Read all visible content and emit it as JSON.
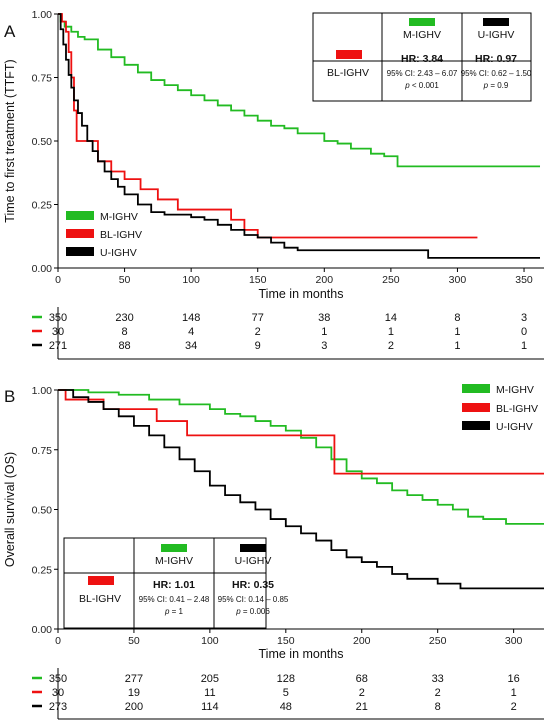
{
  "chart_data": [
    {
      "type": "line",
      "panel_label": "A",
      "ylabel": "Time to first treatment (TTFT)",
      "xlabel": "Time in months",
      "xlim": [
        0,
        365
      ],
      "ylim": [
        0,
        1
      ],
      "xticks": [
        "0",
        "50",
        "100",
        "150",
        "200",
        "250",
        "300",
        "350"
      ],
      "yticks": [
        "0.00",
        "0.25",
        "0.50",
        "0.75",
        "1.00"
      ],
      "legend": [
        "M-IGHV",
        "BL-IGHV",
        "U-IGHV"
      ],
      "series": [
        {
          "name": "M-IGHV",
          "color": "#22bb22",
          "points": [
            [
              0,
              1
            ],
            [
              2,
              0.97
            ],
            [
              5,
              0.95
            ],
            [
              10,
              0.93
            ],
            [
              15,
              0.91
            ],
            [
              20,
              0.9
            ],
            [
              30,
              0.86
            ],
            [
              40,
              0.83
            ],
            [
              50,
              0.8
            ],
            [
              60,
              0.77
            ],
            [
              70,
              0.74
            ],
            [
              80,
              0.72
            ],
            [
              90,
              0.7
            ],
            [
              100,
              0.68
            ],
            [
              110,
              0.66
            ],
            [
              120,
              0.64
            ],
            [
              130,
              0.62
            ],
            [
              140,
              0.6
            ],
            [
              150,
              0.58
            ],
            [
              160,
              0.56
            ],
            [
              170,
              0.55
            ],
            [
              180,
              0.53
            ],
            [
              200,
              0.5
            ],
            [
              210,
              0.49
            ],
            [
              220,
              0.47
            ],
            [
              235,
              0.45
            ],
            [
              245,
              0.44
            ],
            [
              255,
              0.4
            ],
            [
              300,
              0.4
            ],
            [
              362,
              0.4
            ]
          ]
        },
        {
          "name": "BL-IGHV",
          "color": "#ee1111",
          "points": [
            [
              0,
              1
            ],
            [
              3,
              0.97
            ],
            [
              6,
              0.93
            ],
            [
              8,
              0.85
            ],
            [
              10,
              0.75
            ],
            [
              12,
              0.62
            ],
            [
              14,
              0.5
            ],
            [
              30,
              0.5
            ],
            [
              30,
              0.42
            ],
            [
              40,
              0.42
            ],
            [
              40,
              0.38
            ],
            [
              50,
              0.38
            ],
            [
              50,
              0.35
            ],
            [
              62,
              0.35
            ],
            [
              62,
              0.31
            ],
            [
              75,
              0.31
            ],
            [
              75,
              0.27
            ],
            [
              90,
              0.27
            ],
            [
              90,
              0.23
            ],
            [
              130,
              0.23
            ],
            [
              130,
              0.19
            ],
            [
              140,
              0.19
            ],
            [
              140,
              0.15
            ],
            [
              150,
              0.15
            ],
            [
              150,
              0.12
            ],
            [
              315,
              0.12
            ]
          ]
        },
        {
          "name": "U-IGHV",
          "color": "#000000",
          "points": [
            [
              0,
              1
            ],
            [
              2,
              0.94
            ],
            [
              4,
              0.88
            ],
            [
              6,
              0.82
            ],
            [
              8,
              0.76
            ],
            [
              10,
              0.71
            ],
            [
              12,
              0.66
            ],
            [
              15,
              0.61
            ],
            [
              18,
              0.56
            ],
            [
              22,
              0.5
            ],
            [
              26,
              0.46
            ],
            [
              30,
              0.42
            ],
            [
              35,
              0.38
            ],
            [
              40,
              0.35
            ],
            [
              45,
              0.32
            ],
            [
              50,
              0.29
            ],
            [
              60,
              0.25
            ],
            [
              70,
              0.22
            ],
            [
              80,
              0.21
            ],
            [
              100,
              0.2
            ],
            [
              110,
              0.19
            ],
            [
              120,
              0.17
            ],
            [
              130,
              0.15
            ],
            [
              140,
              0.13
            ],
            [
              150,
              0.12
            ],
            [
              160,
              0.1
            ],
            [
              170,
              0.08
            ],
            [
              180,
              0.07
            ],
            [
              278,
              0.07
            ],
            [
              278,
              0.04
            ],
            [
              362,
              0.04
            ]
          ]
        }
      ],
      "risk_table": {
        "times": [
          0,
          50,
          100,
          150,
          200,
          250,
          300,
          350
        ],
        "rows": [
          {
            "name": "M-IGHV",
            "values": [
              "350",
              "230",
              "148",
              "77",
              "38",
              "14",
              "8",
              "3"
            ]
          },
          {
            "name": "BL-IGHV",
            "values": [
              "30",
              "8",
              "4",
              "2",
              "1",
              "1",
              "1",
              "0"
            ]
          },
          {
            "name": "U-IGHV",
            "values": [
              "271",
              "88",
              "34",
              "9",
              "3",
              "2",
              "1",
              "1"
            ]
          }
        ]
      },
      "hr_table": {
        "row": "BL-IGHV",
        "cols": [
          {
            "name": "M-IGHV",
            "hr": "HR: 3.84",
            "ci": "95% CI: 2.43 – 6.07",
            "p": "< 0.001"
          },
          {
            "name": "U-IGHV",
            "hr": "HR: 0.97",
            "ci": "95% CI: 0.62 – 1.50",
            "p": "= 0.9"
          }
        ]
      }
    },
    {
      "type": "line",
      "panel_label": "B",
      "ylabel": "Overall survival (OS)",
      "xlabel": "Time in months",
      "xlim": [
        0,
        320
      ],
      "ylim": [
        0,
        1
      ],
      "xticks": [
        "0",
        "50",
        "100",
        "150",
        "200",
        "250",
        "300"
      ],
      "yticks": [
        "0.00",
        "0.25",
        "0.50",
        "0.75",
        "1.00"
      ],
      "legend": [
        "M-IGHV",
        "BL-IGHV",
        "U-IGHV"
      ],
      "series": [
        {
          "name": "M-IGHV",
          "color": "#22bb22",
          "points": [
            [
              0,
              1
            ],
            [
              20,
              0.99
            ],
            [
              40,
              0.98
            ],
            [
              60,
              0.96
            ],
            [
              80,
              0.94
            ],
            [
              100,
              0.92
            ],
            [
              110,
              0.9
            ],
            [
              120,
              0.89
            ],
            [
              130,
              0.87
            ],
            [
              140,
              0.85
            ],
            [
              150,
              0.83
            ],
            [
              160,
              0.8
            ],
            [
              170,
              0.76
            ],
            [
              180,
              0.71
            ],
            [
              190,
              0.66
            ],
            [
              200,
              0.63
            ],
            [
              210,
              0.61
            ],
            [
              220,
              0.58
            ],
            [
              230,
              0.56
            ],
            [
              240,
              0.54
            ],
            [
              250,
              0.52
            ],
            [
              260,
              0.5
            ],
            [
              270,
              0.47
            ],
            [
              280,
              0.46
            ],
            [
              295,
              0.44
            ],
            [
              320,
              0.44
            ]
          ]
        },
        {
          "name": "BL-IGHV",
          "color": "#ee1111",
          "points": [
            [
              0,
              1
            ],
            [
              5,
              0.96
            ],
            [
              30,
              0.96
            ],
            [
              30,
              0.92
            ],
            [
              65,
              0.92
            ],
            [
              65,
              0.87
            ],
            [
              85,
              0.87
            ],
            [
              85,
              0.81
            ],
            [
              180,
              0.81
            ],
            [
              182,
              0.65
            ],
            [
              320,
              0.65
            ]
          ]
        },
        {
          "name": "U-IGHV",
          "color": "#000000",
          "points": [
            [
              0,
              1
            ],
            [
              10,
              0.97
            ],
            [
              20,
              0.95
            ],
            [
              30,
              0.92
            ],
            [
              40,
              0.89
            ],
            [
              50,
              0.85
            ],
            [
              60,
              0.81
            ],
            [
              70,
              0.76
            ],
            [
              80,
              0.71
            ],
            [
              90,
              0.66
            ],
            [
              100,
              0.6
            ],
            [
              110,
              0.56
            ],
            [
              120,
              0.53
            ],
            [
              130,
              0.5
            ],
            [
              140,
              0.46
            ],
            [
              150,
              0.43
            ],
            [
              160,
              0.4
            ],
            [
              170,
              0.37
            ],
            [
              180,
              0.33
            ],
            [
              190,
              0.3
            ],
            [
              200,
              0.28
            ],
            [
              210,
              0.26
            ],
            [
              220,
              0.23
            ],
            [
              230,
              0.21
            ],
            [
              250,
              0.19
            ],
            [
              265,
              0.17
            ],
            [
              320,
              0.17
            ]
          ]
        }
      ],
      "risk_table": {
        "times": [
          0,
          50,
          100,
          150,
          200,
          250,
          300
        ],
        "rows": [
          {
            "name": "M-IGHV",
            "values": [
              "350",
              "277",
              "205",
              "128",
              "68",
              "33",
              "16"
            ]
          },
          {
            "name": "BL-IGHV",
            "values": [
              "30",
              "19",
              "11",
              "5",
              "2",
              "2",
              "1"
            ]
          },
          {
            "name": "U-IGHV",
            "values": [
              "273",
              "200",
              "114",
              "48",
              "21",
              "8",
              "2"
            ]
          }
        ]
      },
      "hr_table": {
        "row": "BL-IGHV",
        "cols": [
          {
            "name": "M-IGHV",
            "hr": "HR: 1.01",
            "ci": "95% CI: 0.41 – 2.48",
            "p": "= 1"
          },
          {
            "name": "U-IGHV",
            "hr": "HR: 0.35",
            "ci": "95% CI: 0.14 – 0.85",
            "p": "= 0.006"
          }
        ]
      }
    }
  ],
  "p_symbol": "p"
}
